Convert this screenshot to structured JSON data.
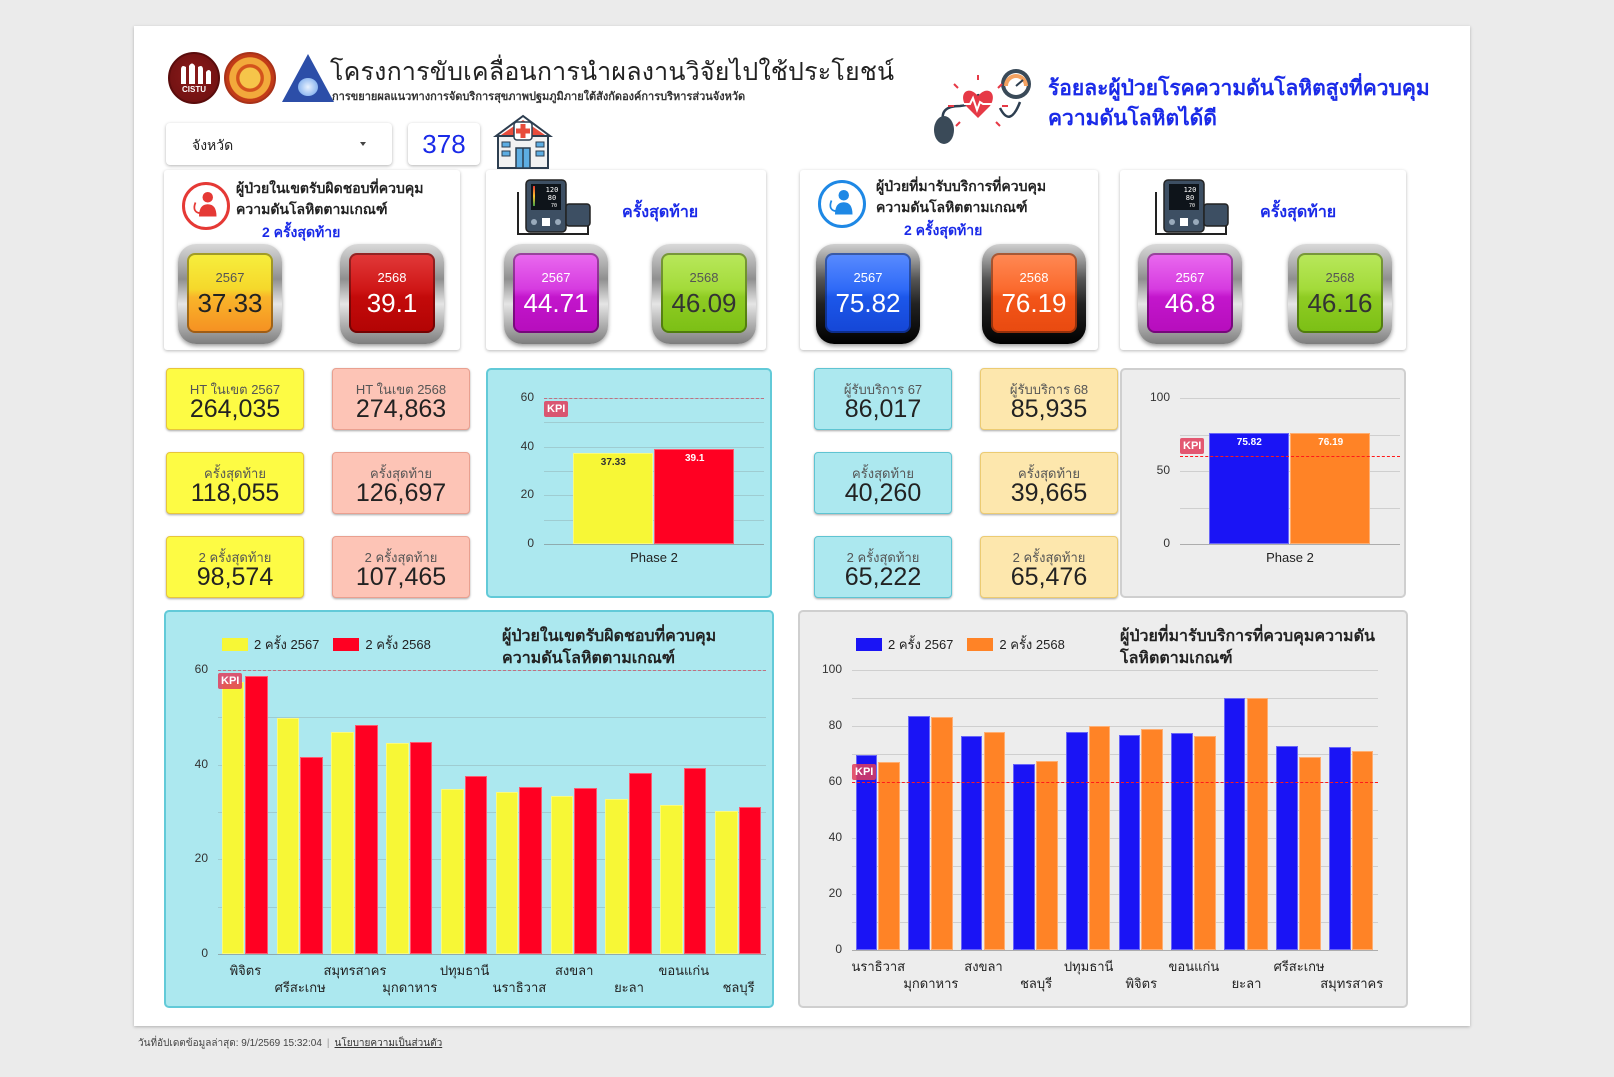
{
  "header": {
    "title": "โครงการขับเคลื่อนการนำผลงานวิจัยไปใช้ประโยชน์",
    "subtitle": "การขยายผลแนวทางการจัดบริการสุขภาพปฐมภูมิภายใต้สังกัดองค์การบริหารส่วนจังหวัด",
    "logo_text": "CISTU",
    "right_title": "ร้อยละผู้ป่วยโรคความดันโลหิตสูงที่ควบคุมความดันโลหิตได้ดี"
  },
  "filters": {
    "province_label": "จังหวัด",
    "hospital_count": "378"
  },
  "kpi_cards": [
    {
      "title_line1": "ผู้ป่วยในเขตรับผิดชอบที่ควบคุม",
      "title_line2": "ความดันโลหิตตามเกณฑ์",
      "subtitle": "2 ครั้งสุดท้าย",
      "left": {
        "year": "2567",
        "value": "37.33"
      },
      "right": {
        "year": "2568",
        "value": "39.1"
      }
    },
    {
      "subtitle": "ครั้งสุดท้าย",
      "left": {
        "year": "2567",
        "value": "44.71"
      },
      "right": {
        "year": "2568",
        "value": "46.09"
      }
    },
    {
      "title_line1": "ผู้ป่วยที่มารับบริการที่ควบคุม",
      "title_line2": "ความดันโลหิตตามเกณฑ์",
      "subtitle": "2 ครั้งสุดท้าย",
      "left": {
        "year": "2567",
        "value": "75.82"
      },
      "right": {
        "year": "2568",
        "value": "76.19"
      }
    },
    {
      "subtitle": "ครั้งสุดท้าย",
      "left": {
        "year": "2567",
        "value": "46.8"
      },
      "right": {
        "year": "2568",
        "value": "46.16"
      }
    }
  ],
  "monitor_display": {
    "sys": "120",
    "dia": "80",
    "pulse": "70"
  },
  "tiles_left": [
    {
      "label": "HT ในเขต 2567",
      "value": "264,035"
    },
    {
      "label": "HT ในเขต 2568",
      "value": "274,863"
    },
    {
      "label": "ครั้งสุดท้าย",
      "value": "118,055"
    },
    {
      "label": "ครั้งสุดท้าย",
      "value": "126,697"
    },
    {
      "label": "2 ครั้งสุดท้าย",
      "value": "98,574"
    },
    {
      "label": "2 ครั้งสุดท้าย",
      "value": "107,465"
    }
  ],
  "tiles_right": [
    {
      "label": "ผู้รับบริการ 67",
      "value": "86,017"
    },
    {
      "label": "ผู้รับบริการ 68",
      "value": "85,935"
    },
    {
      "label": "ครั้งสุดท้าย",
      "value": "40,260"
    },
    {
      "label": "ครั้งสุดท้าย",
      "value": "39,665"
    },
    {
      "label": "2 ครั้งสุดท้าย",
      "value": "65,222"
    },
    {
      "label": "2 ครั้งสุดท้าย",
      "value": "65,476"
    }
  ],
  "kpi_label": "KPI",
  "chart_data": [
    {
      "id": "phase-left",
      "type": "bar",
      "categories": [
        "Phase 2"
      ],
      "series": [
        {
          "name": "2567",
          "values": [
            37.33
          ],
          "color": "#f7f736"
        },
        {
          "name": "2568",
          "values": [
            39.1
          ],
          "color": "#ff0022"
        }
      ],
      "data_labels": [
        "37.33",
        "39.1"
      ],
      "yticks": [
        "60",
        "40",
        "20",
        "0"
      ],
      "ylim": [
        0,
        60
      ],
      "kpi": 60,
      "grid": true
    },
    {
      "id": "phase-right",
      "type": "bar",
      "categories": [
        "Phase 2"
      ],
      "series": [
        {
          "name": "2567",
          "values": [
            75.82
          ],
          "color": "#1a14f5"
        },
        {
          "name": "2568",
          "values": [
            76.19
          ],
          "color": "#ff8326"
        }
      ],
      "data_labels": [
        "75.82",
        "76.19"
      ],
      "yticks": [
        "100",
        "50",
        "0"
      ],
      "ylim": [
        0,
        100
      ],
      "kpi": 60,
      "grid": true
    },
    {
      "id": "province-left",
      "type": "bar",
      "title": "ผู้ป่วยในเขตรับผิดชอบที่ควบคุมความดันโลหิตตามเกณฑ์",
      "title_line1": "ผู้ป่วยในเขตรับผิดชอบที่ควบคุม",
      "title_line2": "ความดันโลหิตตามเกณฑ์",
      "legend": [
        "2 ครั้ง 2567",
        "2 ครั้ง 2568"
      ],
      "legend_position": "top-left",
      "categories": [
        "พิจิตร",
        "ศรีสะเกษ",
        "สมุทรสาคร",
        "มุกดาหาร",
        "ปทุมธานี",
        "นราธิวาส",
        "สงขลา",
        "ยะลา",
        "ขอนแก่น",
        "ชลบุรี"
      ],
      "series": [
        {
          "name": "2 ครั้ง 2567",
          "values": [
            57.5,
            49.8,
            46.9,
            44.6,
            34.9,
            34.2,
            33.4,
            32.8,
            31.4,
            30.3
          ],
          "color": "#f7f736"
        },
        {
          "name": "2 ครั้ง 2568",
          "values": [
            58.8,
            41.6,
            48.4,
            44.7,
            37.6,
            35.3,
            35.1,
            38.3,
            39.2,
            31.1
          ],
          "color": "#ff0022"
        }
      ],
      "yticks": [
        "60",
        "40",
        "20",
        "0"
      ],
      "ylim": [
        0,
        60
      ],
      "kpi": 60,
      "grid": true
    },
    {
      "id": "province-right",
      "type": "bar",
      "title": "ผู้ป่วยที่มารับบริการที่ควบคุมความดันโลหิตตามเกณฑ์",
      "title_line1": "ผู้ป่วยที่มารับบริการที่ควบคุมความดัน",
      "title_line2": "โลหิตตามเกณฑ์",
      "legend": [
        "2 ครั้ง 2567",
        "2 ครั้ง 2568"
      ],
      "legend_position": "top-left",
      "categories": [
        "นราธิวาส",
        "มุกดาหาร",
        "สงขลา",
        "ชลบุรี",
        "ปทุมธานี",
        "พิจิตร",
        "ขอนแก่น",
        "ยะลา",
        "ศรีสะเกษ",
        "สมุทรสาคร"
      ],
      "series": [
        {
          "name": "2 ครั้ง 2567",
          "values": [
            69.7,
            83.6,
            76.3,
            66.3,
            78.0,
            76.9,
            77.4,
            90.0,
            72.9,
            72.4
          ],
          "color": "#1a14f5"
        },
        {
          "name": "2 ครั้ง 2568",
          "values": [
            67.2,
            83.1,
            78.0,
            67.5,
            80.0,
            79.1,
            76.6,
            89.9,
            68.9,
            71.1
          ],
          "color": "#ff8326"
        }
      ],
      "yticks": [
        "100",
        "80",
        "60",
        "40",
        "20",
        "0"
      ],
      "ylim": [
        0,
        100
      ],
      "kpi": 60,
      "grid": true
    }
  ],
  "footer": {
    "updated": "วันที่อัปเดตข้อมูลล่าสุด: 9/1/2569 15:32:04",
    "privacy_link": "นโยบายความเป็นส่วนตัว"
  }
}
